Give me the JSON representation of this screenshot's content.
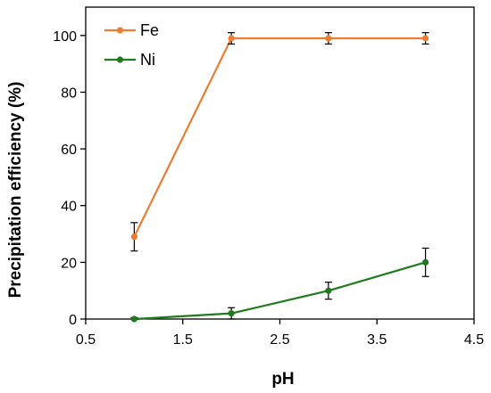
{
  "chart_data": {
    "type": "line",
    "xlabel": "pH",
    "ylabel": "Precipitation efficiency (%)",
    "xlim": [
      0.5,
      4.5
    ],
    "ylim": [
      0,
      110
    ],
    "x_ticks": [
      0.5,
      1.5,
      2.5,
      3.5,
      4.5
    ],
    "x_tick_labels": [
      "0.5",
      "1.5",
      "2.5",
      "3.5",
      "4.5"
    ],
    "y_ticks": [
      0,
      20,
      40,
      60,
      80,
      100
    ],
    "y_tick_labels": [
      "0",
      "20",
      "40",
      "60",
      "80",
      "100"
    ],
    "grid": false,
    "legend_position": "top-left",
    "series": [
      {
        "name": "Fe",
        "color": "#ED7D31",
        "x": [
          1,
          2,
          3,
          4
        ],
        "y": [
          29,
          99,
          99,
          99
        ],
        "error": [
          5,
          2,
          2,
          2
        ]
      },
      {
        "name": "Ni",
        "color": "#1E7B1E",
        "x": [
          1,
          2,
          3,
          4
        ],
        "y": [
          0,
          2,
          10,
          20
        ],
        "error": [
          0.5,
          2,
          3,
          5
        ]
      }
    ]
  }
}
